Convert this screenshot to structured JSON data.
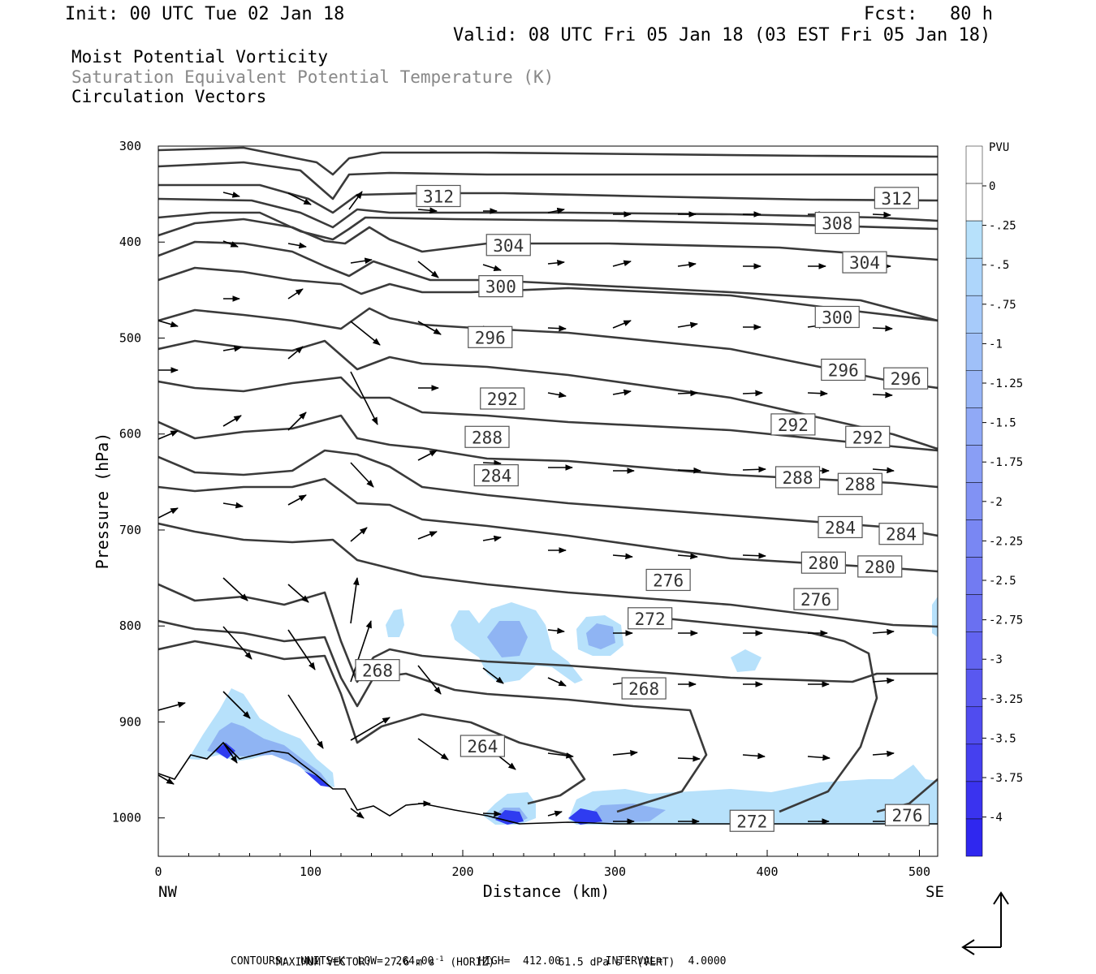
{
  "header": {
    "init": "Init: 00 UTC Tue 02 Jan 18",
    "fcst": "Fcst:   80 h",
    "valid": "Valid: 08 UTC Fri 05 Jan 18 (03 EST Fri 05 Jan 18)"
  },
  "legend": {
    "line1": "Moist Potential Vorticity",
    "line2": "Saturation Equivalent Potential Temperature (K)",
    "line3": "Circulation Vectors"
  },
  "footer": {
    "max_vector_label": "MAXIMUM VECTOR:",
    "max_horiz": "27.6 m s",
    "horiz_unit": "(HORIZ)",
    "max_vert": "61.5 dPa s",
    "vert_unit": "(VERT)",
    "exp": "-1",
    "contours": "CONTOURS:  UNITS=K  LOW=  264.00       HIGH=  412.00       INTERVAL=    4.0000"
  },
  "colors": {
    "contour": "#3a3a3a",
    "shade_light": "#b7e1fb",
    "shade_mid": "#8fb4f3",
    "shade_dark": "#2f3cf0"
  },
  "chart_data": {
    "type": "cross-section",
    "xlabel": "Distance (km)",
    "ylabel": "Pressure (hPa)",
    "xlim": [
      0,
      512
    ],
    "ylim": [
      300,
      1040
    ],
    "y_inverted": true,
    "x_ticks": [
      "0",
      "100",
      "200",
      "300",
      "400",
      "500"
    ],
    "y_ticks": [
      "300",
      "400",
      "500",
      "600",
      "700",
      "800",
      "900",
      "1000"
    ],
    "x_end_labels": {
      "left": "NW",
      "right": "SE"
    },
    "colorbar": {
      "unit": "PVU",
      "labels": [
        "0",
        "-.25",
        "-.5",
        "-.75",
        "-1",
        "-1.25",
        "-1.5",
        "-1.75",
        "-2",
        "-2.25",
        "-2.5",
        "-2.75",
        "-3",
        "-3.25",
        "-3.5",
        "-3.75",
        "-4"
      ],
      "colors": [
        "#ffffff",
        "#ffffff",
        "#b7e1fb",
        "#aed6fb",
        "#a7cbfa",
        "#9fc0f8",
        "#98b5f7",
        "#90a9f6",
        "#899ef5",
        "#8192f4",
        "#7987f3",
        "#727bf2",
        "#6a70f1",
        "#6264f1",
        "#5958f0",
        "#504cef",
        "#4540ef",
        "#3a33ef",
        "#2f27ef"
      ]
    },
    "contour_labels": [
      {
        "text": "312",
        "x": 184,
        "y": 352
      },
      {
        "text": "312",
        "x": 485,
        "y": 354
      },
      {
        "text": "308",
        "x": 446,
        "y": 380
      },
      {
        "text": "304",
        "x": 230,
        "y": 403
      },
      {
        "text": "304",
        "x": 464,
        "y": 421
      },
      {
        "text": "300",
        "x": 225,
        "y": 446
      },
      {
        "text": "300",
        "x": 446,
        "y": 478
      },
      {
        "text": "296",
        "x": 218,
        "y": 499
      },
      {
        "text": "296",
        "x": 450,
        "y": 533
      },
      {
        "text": "296",
        "x": 491,
        "y": 542
      },
      {
        "text": "292",
        "x": 226,
        "y": 563
      },
      {
        "text": "292",
        "x": 417,
        "y": 590
      },
      {
        "text": "292",
        "x": 466,
        "y": 603
      },
      {
        "text": "288",
        "x": 216,
        "y": 603
      },
      {
        "text": "288",
        "x": 420,
        "y": 645
      },
      {
        "text": "288",
        "x": 461,
        "y": 652
      },
      {
        "text": "284",
        "x": 222,
        "y": 643
      },
      {
        "text": "284",
        "x": 448,
        "y": 697
      },
      {
        "text": "284",
        "x": 488,
        "y": 704
      },
      {
        "text": "280",
        "x": 437,
        "y": 734
      },
      {
        "text": "280",
        "x": 474,
        "y": 738
      },
      {
        "text": "276",
        "x": 335,
        "y": 752
      },
      {
        "text": "276",
        "x": 432,
        "y": 772
      },
      {
        "text": "276",
        "x": 492,
        "y": 997
      },
      {
        "text": "272",
        "x": 323,
        "y": 792
      },
      {
        "text": "272",
        "x": 390,
        "y": 1003
      },
      {
        "text": "268",
        "x": 144,
        "y": 846
      },
      {
        "text": "268",
        "x": 319,
        "y": 865
      },
      {
        "text": "264",
        "x": 213,
        "y": 925
      }
    ]
  }
}
